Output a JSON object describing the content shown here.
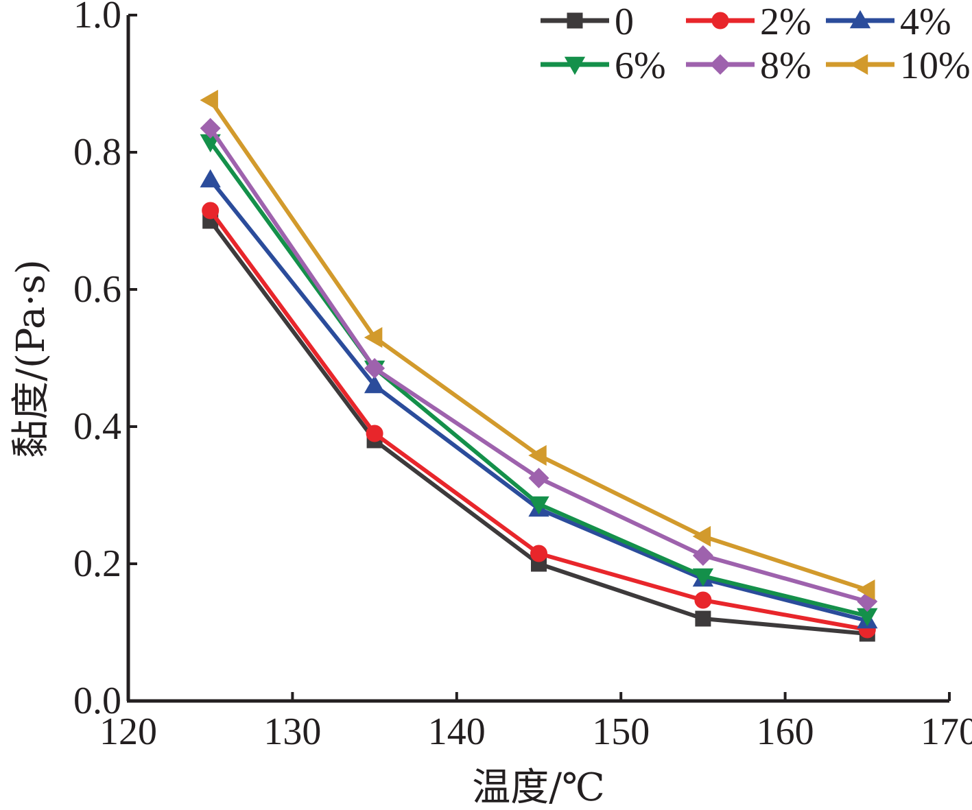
{
  "chart_data": {
    "type": "line",
    "xlabel": "温度/℃",
    "ylabel": "黏度/(Pa·s)",
    "xlim": [
      120,
      170
    ],
    "ylim": [
      0.0,
      1.0
    ],
    "x_ticks": [
      "120",
      "130",
      "140",
      "150",
      "160",
      "170"
    ],
    "y_ticks": [
      "0.0",
      "0.2",
      "0.4",
      "0.6",
      "0.8",
      "1.0"
    ],
    "x": [
      125,
      135,
      145,
      155,
      165
    ],
    "grid": false,
    "legend_position": "top-right",
    "series": [
      {
        "name": "0",
        "color": "#3d3a3b",
        "marker": "square",
        "values": [
          0.7,
          0.38,
          0.2,
          0.12,
          0.098
        ]
      },
      {
        "name": "2%",
        "color": "#e8262b",
        "marker": "circle",
        "values": [
          0.715,
          0.39,
          0.215,
          0.147,
          0.104
        ]
      },
      {
        "name": "4%",
        "color": "#2b4c9b",
        "marker": "triangle-up",
        "values": [
          0.76,
          0.46,
          0.28,
          0.178,
          0.117
        ]
      },
      {
        "name": "6%",
        "color": "#14904a",
        "marker": "triangle-down",
        "values": [
          0.815,
          0.485,
          0.287,
          0.182,
          0.124
        ]
      },
      {
        "name": "8%",
        "color": "#9e62ad",
        "marker": "diamond",
        "values": [
          0.835,
          0.485,
          0.325,
          0.212,
          0.145
        ]
      },
      {
        "name": "10%",
        "color": "#d29a2c",
        "marker": "triangle-left",
        "values": [
          0.876,
          0.53,
          0.358,
          0.24,
          0.162
        ]
      }
    ]
  }
}
